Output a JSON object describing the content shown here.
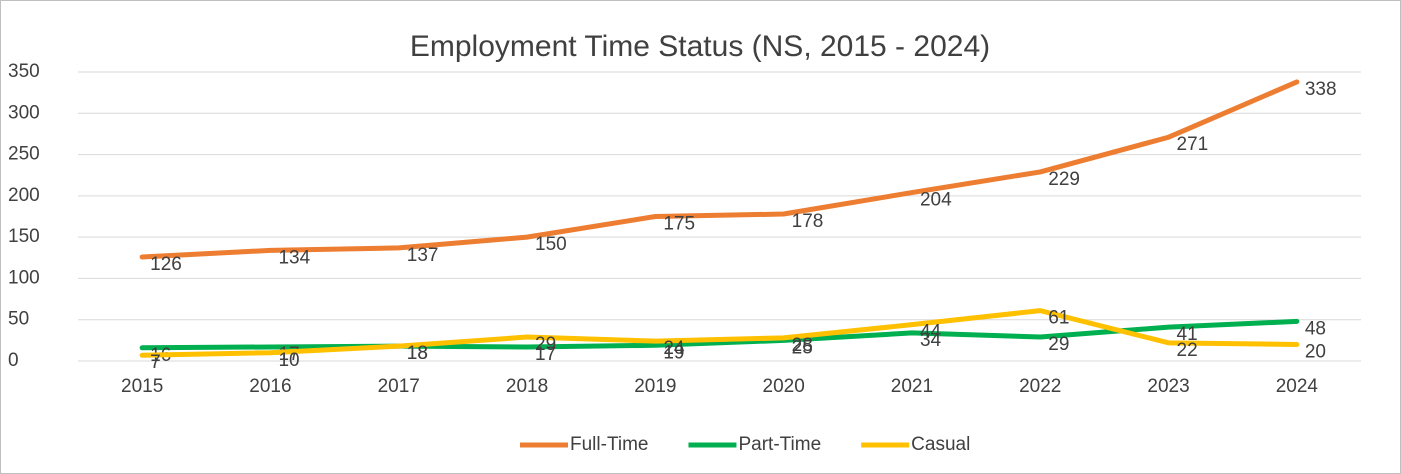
{
  "chart_data": {
    "type": "line",
    "title": "Employment Time Status (NS, 2015 - 2024)",
    "categories": [
      "2015",
      "2016",
      "2017",
      "2018",
      "2019",
      "2020",
      "2021",
      "2022",
      "2023",
      "2024"
    ],
    "series": [
      {
        "name": "Full-Time",
        "color": "#ed7d31",
        "values": [
          126,
          134,
          137,
          150,
          175,
          178,
          204,
          229,
          271,
          338
        ]
      },
      {
        "name": "Part-Time",
        "color": "#00b050",
        "values": [
          16,
          17,
          18,
          17,
          19,
          25,
          34,
          29,
          41,
          48
        ]
      },
      {
        "name": "Casual",
        "color": "#ffc000",
        "values": [
          7,
          10,
          18,
          29,
          24,
          28,
          44,
          61,
          22,
          20
        ]
      }
    ],
    "ylim": [
      0,
      350
    ],
    "yticks": [
      0,
      50,
      100,
      150,
      200,
      250,
      300,
      350
    ],
    "grid": true,
    "legend": "bottom"
  }
}
